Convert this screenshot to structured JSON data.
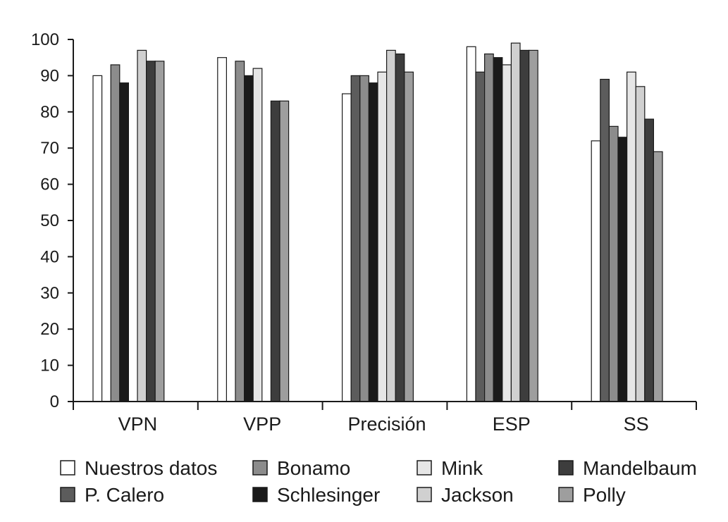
{
  "chart_data": {
    "type": "bar",
    "title": "",
    "xlabel": "",
    "ylabel": "",
    "ylim": [
      0,
      100
    ],
    "yticks": [
      0,
      10,
      20,
      30,
      40,
      50,
      60,
      70,
      80,
      90,
      100
    ],
    "grid": false,
    "legend_position": "bottom",
    "categories": [
      "VPN",
      "VPP",
      "Precisión",
      "ESP",
      "SS"
    ],
    "series": [
      {
        "name": "Nuestros datos",
        "color": "#ffffff",
        "values": [
          90,
          95,
          85,
          98,
          72
        ]
      },
      {
        "name": "P. Calero",
        "color": "#5c5c5c",
        "values": [
          null,
          null,
          90,
          91,
          89
        ]
      },
      {
        "name": "Bonamo",
        "color": "#8c8c8c",
        "values": [
          93,
          94,
          90,
          96,
          76
        ]
      },
      {
        "name": "Schlesinger",
        "color": "#1a1a1a",
        "values": [
          88,
          90,
          88,
          95,
          73
        ]
      },
      {
        "name": "Mink",
        "color": "#e6e6e6",
        "values": [
          null,
          92,
          91,
          93,
          91
        ]
      },
      {
        "name": "Jackson",
        "color": "#d0d0d0",
        "values": [
          97,
          null,
          97,
          99,
          87
        ]
      },
      {
        "name": "Mandelbaum",
        "color": "#3d3d3d",
        "values": [
          94,
          83,
          96,
          97,
          78
        ]
      },
      {
        "name": "Polly",
        "color": "#9e9e9e",
        "values": [
          94,
          83,
          91,
          97,
          69
        ]
      }
    ]
  }
}
